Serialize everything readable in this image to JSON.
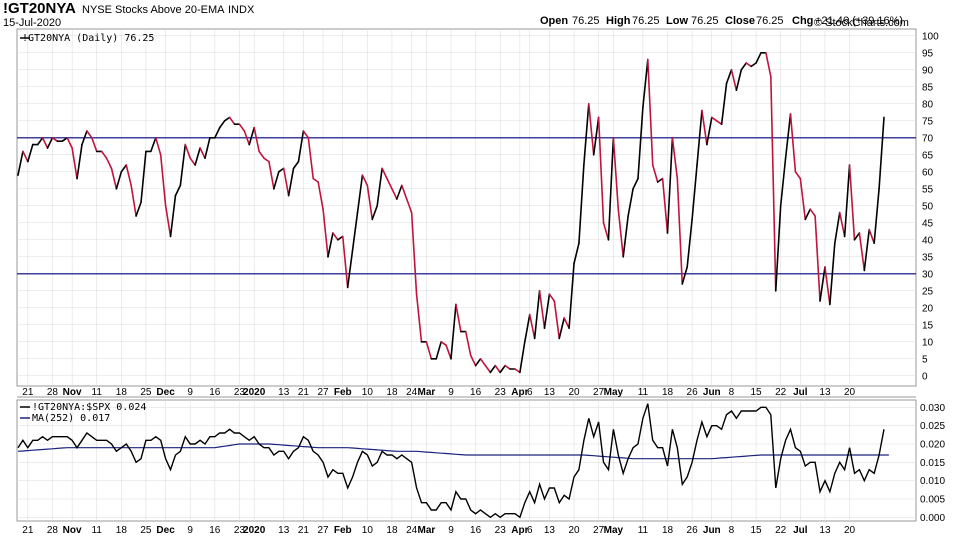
{
  "header": {
    "symbol": "!GT20NYA",
    "description": "NYSE Stocks Above 20-EMA",
    "exchange": "INDX",
    "date": "15-Jul-2020",
    "open_label": "Open",
    "open": "76.25",
    "high_label": "High",
    "high": "76.25",
    "low_label": "Low",
    "low": "76.25",
    "close_label": "Close",
    "close": "76.25",
    "chg_label": "Chg",
    "chg": "+21.46 (+39.16%)",
    "watermark": "© StockCharts.com"
  },
  "colors": {
    "up": "#000000",
    "down": "#c0143c",
    "ref_line": "#000080",
    "ma_line": "#1a237e",
    "grid": "#d9d9d9"
  },
  "x_axis": {
    "ticks": [
      {
        "i": 2,
        "label": "21"
      },
      {
        "i": 7,
        "label": "28"
      },
      {
        "i": 11,
        "label": "Nov",
        "bold": true
      },
      {
        "i": 16,
        "label": "11"
      },
      {
        "i": 21,
        "label": "18"
      },
      {
        "i": 26,
        "label": "25"
      },
      {
        "i": 30,
        "label": "Dec",
        "bold": true
      },
      {
        "i": 35,
        "label": "9"
      },
      {
        "i": 40,
        "label": "16"
      },
      {
        "i": 45,
        "label": "23"
      },
      {
        "i": 48,
        "label": "2020",
        "bold": true
      },
      {
        "i": 54,
        "label": "13"
      },
      {
        "i": 58,
        "label": "21"
      },
      {
        "i": 62,
        "label": "27"
      },
      {
        "i": 66,
        "label": "Feb",
        "bold": true
      },
      {
        "i": 71,
        "label": "10"
      },
      {
        "i": 76,
        "label": "18"
      },
      {
        "i": 80,
        "label": "24"
      },
      {
        "i": 83,
        "label": "Mar",
        "bold": true
      },
      {
        "i": 88,
        "label": "9"
      },
      {
        "i": 93,
        "label": "16"
      },
      {
        "i": 98,
        "label": "23"
      },
      {
        "i": 102,
        "label": "Apr",
        "bold": true
      },
      {
        "i": 104,
        "label": "6"
      },
      {
        "i": 108,
        "label": "13"
      },
      {
        "i": 113,
        "label": "20"
      },
      {
        "i": 118,
        "label": "27"
      },
      {
        "i": 121,
        "label": "May",
        "bold": true
      },
      {
        "i": 127,
        "label": "11"
      },
      {
        "i": 132,
        "label": "18"
      },
      {
        "i": 137,
        "label": "26"
      },
      {
        "i": 141,
        "label": "Jun",
        "bold": true
      },
      {
        "i": 145,
        "label": "8"
      },
      {
        "i": 150,
        "label": "15"
      },
      {
        "i": 155,
        "label": "22"
      },
      {
        "i": 159,
        "label": "Jul",
        "bold": true
      },
      {
        "i": 164,
        "label": "13"
      },
      {
        "i": 169,
        "label": "20"
      }
    ]
  },
  "chart_data": [
    {
      "type": "line",
      "title": "!GT20NYA (Daily) 76.25",
      "x_axis": "trading days, Oct 2019 to 15-Jul-2020",
      "ylim": [
        -3,
        102
      ],
      "yticks": [
        0,
        5,
        10,
        15,
        20,
        25,
        30,
        35,
        40,
        45,
        50,
        55,
        60,
        65,
        70,
        75,
        80,
        85,
        90,
        95,
        100
      ],
      "reference_lines": [
        70,
        30
      ],
      "series": [
        {
          "values": [
            59,
            66,
            63,
            68,
            68,
            70,
            67,
            70,
            69,
            69,
            70,
            67,
            58,
            68,
            72,
            70,
            66,
            66,
            64,
            61,
            55,
            60,
            62,
            56,
            47,
            51,
            66,
            66,
            70,
            65,
            50,
            41,
            53,
            56,
            68,
            64,
            62,
            67,
            64,
            70,
            70,
            73,
            75,
            76,
            74,
            74,
            72,
            68,
            73,
            66,
            64,
            63,
            55,
            60,
            61,
            53,
            61,
            63,
            72,
            70,
            58,
            57,
            49,
            35,
            42,
            40,
            41,
            26,
            37,
            48,
            59,
            56,
            46,
            50,
            61,
            58,
            55,
            52,
            56,
            52,
            48,
            24,
            10,
            10,
            5,
            5,
            10,
            9,
            5,
            21,
            13,
            13,
            6,
            3,
            5,
            3,
            1,
            3,
            1,
            3,
            2,
            2,
            1,
            10,
            18,
            11,
            25,
            14,
            24,
            22,
            11,
            17,
            14,
            33,
            39,
            62,
            80,
            65,
            76,
            45,
            40,
            70,
            49,
            35,
            47,
            55,
            58,
            79,
            93,
            62,
            57,
            58,
            42,
            70,
            58,
            27,
            32,
            46,
            62,
            78,
            68,
            76,
            75,
            74,
            86,
            90,
            84,
            90,
            92,
            91,
            92,
            95,
            95,
            88,
            25,
            50,
            64,
            77,
            60,
            58,
            46,
            49,
            47,
            22,
            32,
            21,
            39,
            48,
            41,
            62,
            40,
            42,
            31,
            43,
            39,
            55,
            76
          ]
        }
      ]
    },
    {
      "type": "line",
      "title": "!GT20NYA:$SPX 0.024",
      "ylim": [
        -0.001,
        0.032
      ],
      "yticks": [
        0.0,
        0.005,
        0.01,
        0.015,
        0.02,
        0.025,
        0.03
      ],
      "ytick_labels": [
        "0.000",
        "0.005",
        "0.010",
        "0.015",
        "0.020",
        "0.025",
        "0.030"
      ],
      "series": [
        {
          "name": "!GT20NYA:$SPX",
          "values": [
            0.019,
            0.021,
            0.019,
            0.021,
            0.021,
            0.022,
            0.021,
            0.022,
            0.022,
            0.022,
            0.022,
            0.021,
            0.019,
            0.021,
            0.023,
            0.022,
            0.021,
            0.021,
            0.021,
            0.02,
            0.018,
            0.019,
            0.02,
            0.018,
            0.015,
            0.016,
            0.021,
            0.021,
            0.022,
            0.021,
            0.016,
            0.013,
            0.017,
            0.018,
            0.022,
            0.02,
            0.02,
            0.021,
            0.02,
            0.022,
            0.022,
            0.023,
            0.023,
            0.024,
            0.023,
            0.023,
            0.022,
            0.021,
            0.022,
            0.02,
            0.019,
            0.019,
            0.017,
            0.018,
            0.018,
            0.016,
            0.018,
            0.019,
            0.022,
            0.021,
            0.018,
            0.017,
            0.015,
            0.011,
            0.013,
            0.012,
            0.012,
            0.008,
            0.011,
            0.015,
            0.018,
            0.017,
            0.014,
            0.015,
            0.018,
            0.017,
            0.017,
            0.016,
            0.017,
            0.016,
            0.015,
            0.008,
            0.004,
            0.004,
            0.002,
            0.002,
            0.004,
            0.004,
            0.002,
            0.007,
            0.005,
            0.005,
            0.002,
            0.001,
            0.002,
            0.001,
            0.0,
            0.001,
            0.0,
            0.001,
            0.001,
            0.001,
            0.0,
            0.004,
            0.007,
            0.004,
            0.009,
            0.005,
            0.008,
            0.008,
            0.004,
            0.006,
            0.005,
            0.011,
            0.013,
            0.021,
            0.027,
            0.022,
            0.026,
            0.015,
            0.013,
            0.024,
            0.017,
            0.012,
            0.016,
            0.019,
            0.02,
            0.027,
            0.031,
            0.021,
            0.019,
            0.019,
            0.014,
            0.024,
            0.019,
            0.009,
            0.011,
            0.015,
            0.021,
            0.026,
            0.022,
            0.025,
            0.025,
            0.024,
            0.028,
            0.029,
            0.027,
            0.029,
            0.029,
            0.029,
            0.029,
            0.03,
            0.03,
            0.028,
            0.008,
            0.016,
            0.021,
            0.024,
            0.019,
            0.018,
            0.014,
            0.015,
            0.015,
            0.007,
            0.01,
            0.007,
            0.012,
            0.015,
            0.013,
            0.019,
            0.012,
            0.013,
            0.01,
            0.013,
            0.012,
            0.017,
            0.024
          ]
        },
        {
          "name": "MA(252) 0.017",
          "values": [
            0.018,
            0.0181,
            0.0182,
            0.0183,
            0.0184,
            0.0185,
            0.0186,
            0.0187,
            0.0188,
            0.0189,
            0.019,
            0.019,
            0.019,
            0.019,
            0.019,
            0.019,
            0.019,
            0.019,
            0.019,
            0.019,
            0.019,
            0.019,
            0.019,
            0.019,
            0.019,
            0.019,
            0.019,
            0.019,
            0.019,
            0.019,
            0.019,
            0.019,
            0.019,
            0.019,
            0.019,
            0.019,
            0.019,
            0.019,
            0.019,
            0.019,
            0.019,
            0.0192,
            0.0194,
            0.0196,
            0.0198,
            0.02,
            0.02,
            0.02,
            0.02,
            0.02,
            0.02,
            0.02,
            0.0199,
            0.0198,
            0.0197,
            0.0196,
            0.0195,
            0.0194,
            0.0193,
            0.0192,
            0.0191,
            0.019,
            0.019,
            0.019,
            0.019,
            0.019,
            0.019,
            0.019,
            0.0189,
            0.0188,
            0.0187,
            0.0186,
            0.0185,
            0.0184,
            0.0183,
            0.0182,
            0.0181,
            0.018,
            0.018,
            0.018,
            0.018,
            0.018,
            0.0179,
            0.0178,
            0.0177,
            0.0176,
            0.0175,
            0.0174,
            0.0173,
            0.0172,
            0.0171,
            0.017,
            0.017,
            0.017,
            0.017,
            0.017,
            0.017,
            0.017,
            0.017,
            0.017,
            0.017,
            0.017,
            0.017,
            0.017,
            0.017,
            0.017,
            0.017,
            0.017,
            0.017,
            0.017,
            0.017,
            0.017,
            0.017,
            0.017,
            0.017,
            0.017,
            0.0169,
            0.0168,
            0.0167,
            0.0166,
            0.0165,
            0.0164,
            0.0163,
            0.0162,
            0.0161,
            0.016,
            0.016,
            0.016,
            0.016,
            0.016,
            0.016,
            0.016,
            0.016,
            0.016,
            0.016,
            0.016,
            0.016,
            0.016,
            0.016,
            0.016,
            0.016,
            0.016,
            0.0161,
            0.0162,
            0.0163,
            0.0164,
            0.0165,
            0.0166,
            0.0167,
            0.0168,
            0.0169,
            0.017,
            0.017,
            0.017,
            0.017,
            0.017,
            0.017,
            0.017,
            0.017,
            0.017,
            0.017,
            0.017,
            0.017,
            0.017,
            0.017,
            0.017,
            0.017,
            0.017,
            0.017,
            0.017,
            0.017,
            0.017,
            0.017,
            0.017,
            0.017,
            0.017,
            0.017,
            0.017
          ]
        }
      ]
    }
  ]
}
